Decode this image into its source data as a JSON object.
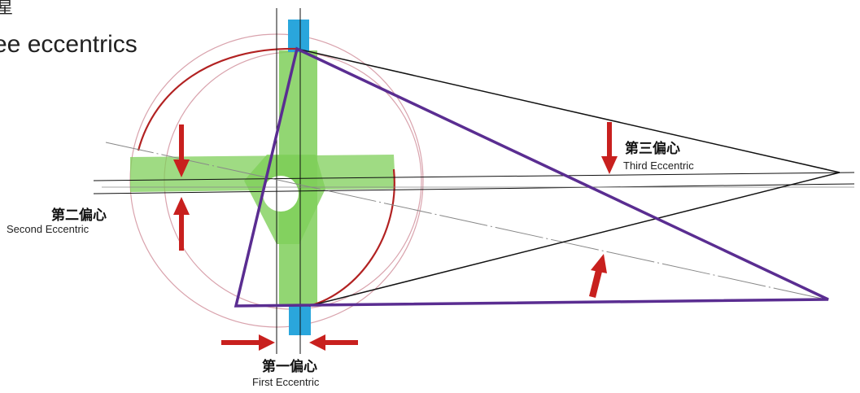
{
  "title": {
    "line1": "星",
    "line2": "ee eccentrics"
  },
  "labels": {
    "first": {
      "cn": "第一偏心",
      "en": "First Eccentric"
    },
    "second": {
      "cn": "第二偏心",
      "en": "Second Eccentric"
    },
    "third": {
      "cn": "第三偏心",
      "en": "Third Eccentric"
    }
  },
  "colors": {
    "arc_red": "#b22222",
    "thin_circle": "#d9a3ad",
    "green_bar": "#7fcf5a",
    "blue_bar": "#2aa6dc",
    "triangle": "#5a2d91",
    "arrow": "#c8201e",
    "black_line": "#111111",
    "gray_line": "#888888"
  }
}
